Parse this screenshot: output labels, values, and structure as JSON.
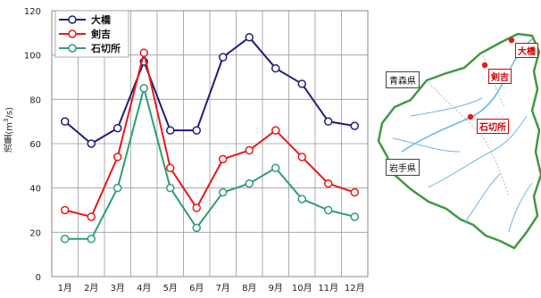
{
  "chart_data": {
    "type": "line",
    "categories": [
      "1月",
      "2月",
      "3月",
      "4月",
      "5月",
      "6月",
      "7月",
      "8月",
      "9月",
      "10月",
      "11月",
      "12月"
    ],
    "series": [
      {
        "name": "大橋",
        "color": "#1f1f7a",
        "values": [
          70,
          60,
          67,
          97,
          66,
          66,
          99,
          108,
          94,
          87,
          70,
          68
        ]
      },
      {
        "name": "剣吉",
        "color": "#e61a1a",
        "values": [
          30,
          27,
          54,
          101,
          49,
          31,
          53,
          57,
          66,
          54,
          42,
          38
        ]
      },
      {
        "name": "石切所",
        "color": "#2e9e6e",
        "values": [
          17,
          17,
          40,
          85,
          40,
          22,
          38,
          42,
          49,
          35,
          30,
          27
        ]
      }
    ],
    "ylabel_main": "流量",
    "ylabel_unit_pre": "(m",
    "ylabel_unit_sup": "3",
    "ylabel_unit_post": "/s)",
    "yticks": [
      0,
      20,
      40,
      60,
      80,
      100,
      120
    ],
    "ylim": [
      0,
      120
    ],
    "grid": true,
    "legend": "top-left"
  },
  "map": {
    "prefectures": [
      "青森県",
      "岩手県"
    ],
    "stations": [
      "大橋",
      "剣吉",
      "石切所"
    ],
    "station_color": "#e61a1a"
  }
}
